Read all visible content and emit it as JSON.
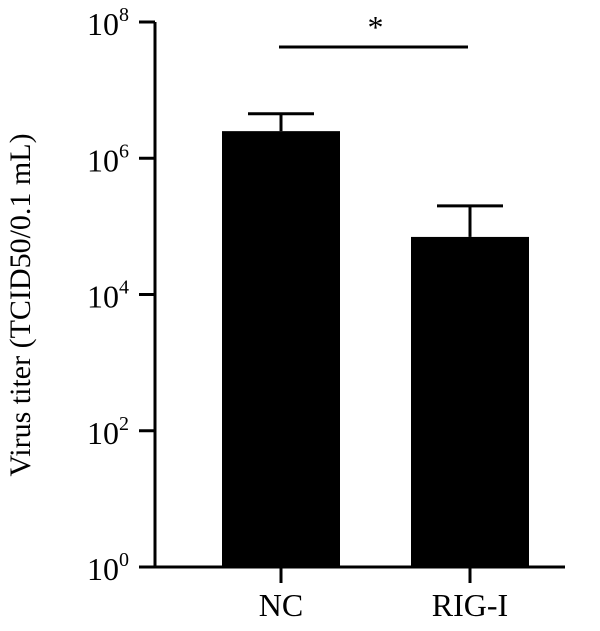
{
  "chart_data": {
    "type": "bar",
    "title": "",
    "xlabel": "",
    "ylabel": "Virus titer (TCID50/0.1 mL)",
    "yscale": "log",
    "ylim": [
      1,
      100000000
    ],
    "y_ticks": [
      {
        "base": "10",
        "exp": "0",
        "value": 1
      },
      {
        "base": "10",
        "exp": "2",
        "value": 100
      },
      {
        "base": "10",
        "exp": "4",
        "value": 10000
      },
      {
        "base": "10",
        "exp": "6",
        "value": 1000000
      },
      {
        "base": "10",
        "exp": "8",
        "value": 100000000
      }
    ],
    "categories": [
      "NC",
      "RIG-I"
    ],
    "values": [
      2500000,
      70000
    ],
    "error_upper": [
      4500000,
      200000
    ],
    "bar_color": "#000000",
    "grid": false,
    "legend": "none",
    "significance": {
      "from": 0,
      "to": 1,
      "label": "*"
    }
  }
}
